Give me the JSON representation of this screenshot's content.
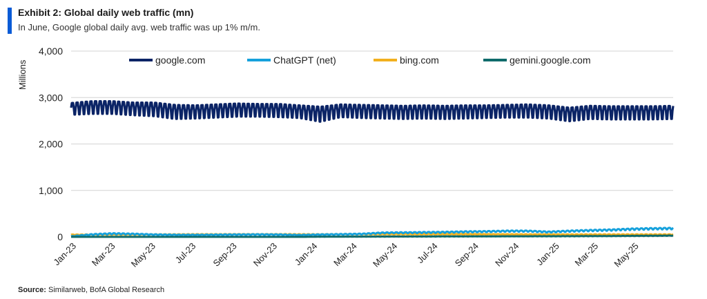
{
  "header": {
    "title": "Exhibit 2: Global daily web traffic (mn)",
    "subtitle": "In June, Google global daily avg. web traffic was up 1% m/m."
  },
  "footer": {
    "source_label": "Source:",
    "source_text": "Similarweb, BofA Global Research"
  },
  "chart_data": {
    "type": "line",
    "title": "Exhibit 2: Global daily web traffic (mn)",
    "ylabel": "Millions",
    "xlabel": "",
    "ylim": [
      0,
      4000
    ],
    "yticks": [
      0,
      1000,
      2000,
      3000,
      4000
    ],
    "ytick_labels": [
      "0",
      "1,000",
      "2,000",
      "3,000",
      "4,000"
    ],
    "xlim": [
      "2023-01-01",
      "2025-06-30"
    ],
    "xtick_labels": [
      "Jan-23",
      "Mar-23",
      "May-23",
      "Jul-23",
      "Sep-23",
      "Nov-23",
      "Jan-24",
      "Mar-24",
      "May-24",
      "Jul-24",
      "Sep-24",
      "Nov-24",
      "Jan-25",
      "Mar-25",
      "May-25"
    ],
    "grid": "horizontal",
    "legend_position": "top",
    "series": [
      {
        "name": "google.com",
        "color": "#0b2466",
        "pattern": "weekly oscillation (weekday high / weekend low)",
        "monthly_high": [
          2880,
          2920,
          2920,
          2890,
          2890,
          2840,
          2830,
          2850,
          2870,
          2860,
          2860,
          2830,
          2800,
          2850,
          2840,
          2830,
          2820,
          2830,
          2820,
          2830,
          2830,
          2840,
          2850,
          2830,
          2780,
          2820,
          2810,
          2810,
          2810,
          2820
        ],
        "monthly_low": [
          2630,
          2650,
          2650,
          2620,
          2600,
          2540,
          2550,
          2570,
          2590,
          2590,
          2580,
          2560,
          2480,
          2580,
          2560,
          2550,
          2540,
          2550,
          2540,
          2550,
          2560,
          2570,
          2570,
          2550,
          2490,
          2540,
          2530,
          2530,
          2530,
          2540
        ]
      },
      {
        "name": "ChatGPT (net)",
        "color": "#16a1dc",
        "pattern": "weekly oscillation",
        "monthly_high": [
          15,
          60,
          80,
          70,
          55,
          50,
          48,
          52,
          55,
          58,
          55,
          45,
          55,
          62,
          70,
          95,
          100,
          105,
          110,
          120,
          125,
          135,
          135,
          115,
          135,
          150,
          160,
          180,
          190,
          195
        ],
        "monthly_low": [
          5,
          40,
          55,
          50,
          40,
          35,
          33,
          36,
          40,
          42,
          40,
          30,
          40,
          45,
          52,
          75,
          78,
          82,
          88,
          95,
          100,
          108,
          110,
          90,
          108,
          122,
          132,
          148,
          158,
          162
        ]
      },
      {
        "name": "bing.com",
        "color": "#f2b01e",
        "pattern": "weekly oscillation",
        "monthly_high": [
          50,
          52,
          55,
          55,
          55,
          56,
          58,
          58,
          60,
          60,
          60,
          58,
          58,
          60,
          62,
          62,
          62,
          62,
          62,
          62,
          60,
          60,
          58,
          55,
          55,
          55,
          55,
          55,
          55,
          55
        ],
        "monthly_low": [
          38,
          40,
          42,
          42,
          42,
          44,
          45,
          45,
          46,
          46,
          46,
          44,
          44,
          46,
          48,
          48,
          48,
          48,
          48,
          48,
          46,
          46,
          44,
          42,
          42,
          42,
          42,
          42,
          42,
          42
        ]
      },
      {
        "name": "gemini.google.com",
        "color": "#0f6b6b",
        "pattern": "weekly oscillation",
        "monthly_high": [
          0,
          0,
          0,
          0,
          0,
          0,
          0,
          0,
          0,
          0,
          0,
          0,
          3,
          5,
          6,
          7,
          8,
          9,
          10,
          11,
          12,
          13,
          14,
          15,
          16,
          18,
          20,
          23,
          26,
          30
        ],
        "monthly_low": [
          0,
          0,
          0,
          0,
          0,
          0,
          0,
          0,
          0,
          0,
          0,
          0,
          2,
          3,
          4,
          5,
          6,
          6,
          7,
          8,
          9,
          10,
          10,
          11,
          12,
          14,
          15,
          18,
          20,
          24
        ]
      }
    ]
  }
}
